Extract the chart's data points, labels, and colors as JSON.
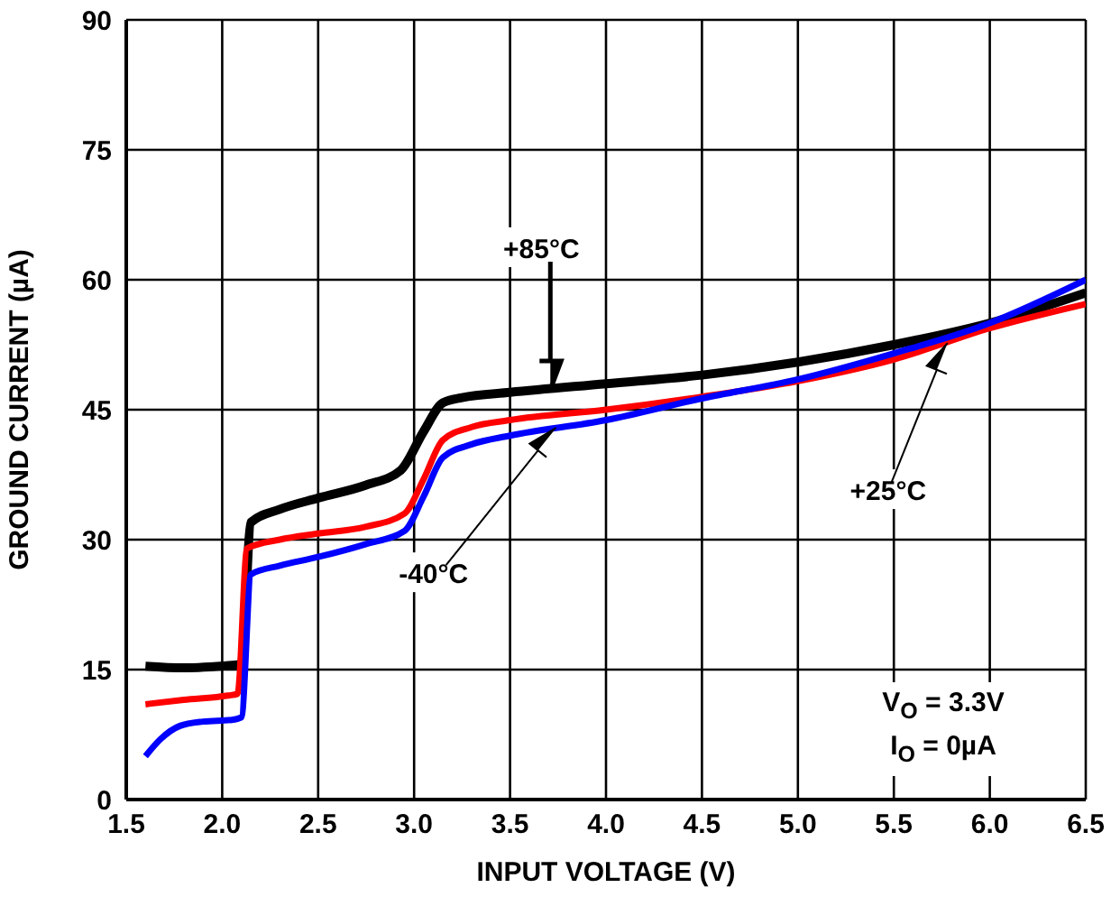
{
  "chart_data": {
    "type": "line",
    "xlabel": "INPUT VOLTAGE (V)",
    "ylabel": "GROUND CURRENT (µA)",
    "xlim": [
      1.5,
      6.5
    ],
    "xticks": [
      {
        "value": 1.5,
        "label": "1.5"
      },
      {
        "value": 2,
        "label": "2.0"
      },
      {
        "value": 2.5,
        "label": "2.5"
      },
      {
        "value": 3,
        "label": "3.0"
      },
      {
        "value": 3.5,
        "label": "3.5"
      },
      {
        "value": 4,
        "label": "4.0"
      },
      {
        "value": 4.5,
        "label": "4.5"
      },
      {
        "value": 5,
        "label": "5.0"
      },
      {
        "value": 5.5,
        "label": "5.5"
      },
      {
        "value": 6,
        "label": "6.0"
      },
      {
        "value": 6.5,
        "label": "6.5"
      }
    ],
    "ylim": [
      0,
      90
    ],
    "yticks": [
      0,
      15,
      30,
      45,
      60,
      75,
      90
    ],
    "grid": true,
    "marker": "none",
    "line_style": "solid",
    "series": [
      {
        "color": "#000000",
        "x": [
          1.6,
          1.8,
          2.05,
          2.1,
          2.15,
          2.3,
          2.5,
          2.75,
          2.93,
          3.05,
          3.15,
          3.25,
          3.5,
          4,
          4.5,
          5,
          5.5,
          6,
          6.5
        ],
        "values": [
          15.4,
          15.2,
          15.5,
          15.6,
          32,
          33.5,
          34.8,
          36.3,
          38,
          42.5,
          45.8,
          46.4,
          47,
          48,
          49,
          50.5,
          52.5,
          55,
          58.5
        ]
      },
      {
        "color": "#ff0000",
        "x": [
          1.6,
          1.8,
          2.03,
          2.08,
          2.13,
          2.3,
          2.5,
          2.75,
          2.95,
          3.05,
          3.15,
          3.3,
          3.5,
          4,
          4.5,
          5,
          5.5,
          6,
          6.5
        ],
        "values": [
          11,
          11.5,
          12,
          12.2,
          29,
          30,
          30.7,
          31.5,
          33,
          37,
          41.5,
          43,
          43.8,
          45,
          46.5,
          48.3,
          50.8,
          54.4,
          57.2
        ]
      },
      {
        "color": "#0000ff",
        "x": [
          1.6,
          1.68,
          1.78,
          1.9,
          2.05,
          2.1,
          2.15,
          2.3,
          2.5,
          2.75,
          2.95,
          3.05,
          3.15,
          3.3,
          3.5,
          4,
          4.5,
          5,
          5.5,
          6,
          6.5
        ],
        "values": [
          5,
          7,
          8.5,
          9,
          9.2,
          9.5,
          26,
          27,
          28,
          29.5,
          31,
          35,
          39.5,
          41,
          42,
          43.8,
          46.3,
          48.5,
          51.5,
          55,
          60
        ]
      }
    ],
    "annotations": [
      {
        "text": "+85°C",
        "x": 3.71,
        "y": 47.3
      },
      {
        "text": "-40°C",
        "x": 3.74,
        "y": 42.9
      },
      {
        "text": "+25°C",
        "x": 5.78,
        "y": 52.7
      },
      "V$_{O}$ = 3.3V",
      "I$_{O}$ = 0µA"
    ]
  }
}
